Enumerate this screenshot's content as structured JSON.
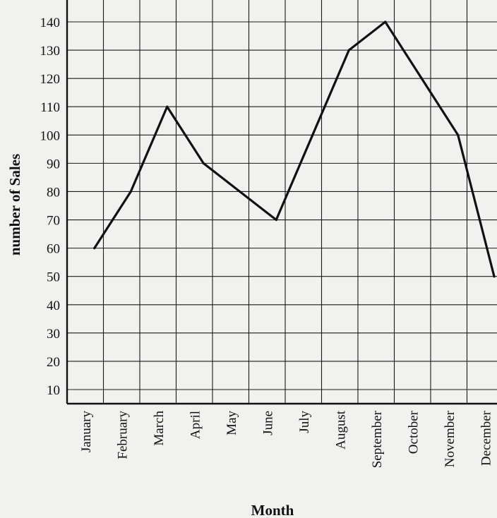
{
  "chart_data": {
    "type": "line",
    "title": "",
    "xlabel": "Month",
    "ylabel": "number of Sales",
    "categories": [
      "January",
      "February",
      "March",
      "April",
      "May",
      "June",
      "July",
      "August",
      "September",
      "October",
      "November",
      "December"
    ],
    "series": [
      {
        "values": [
          60,
          80,
          110,
          90,
          80,
          70,
          100,
          130,
          140,
          120,
          100,
          50
        ]
      }
    ],
    "y_ticks": [
      10,
      20,
      30,
      40,
      50,
      60,
      70,
      80,
      90,
      100,
      110,
      120,
      130,
      140
    ],
    "ylim": [
      0,
      140
    ],
    "grid": true,
    "legend": "none"
  }
}
